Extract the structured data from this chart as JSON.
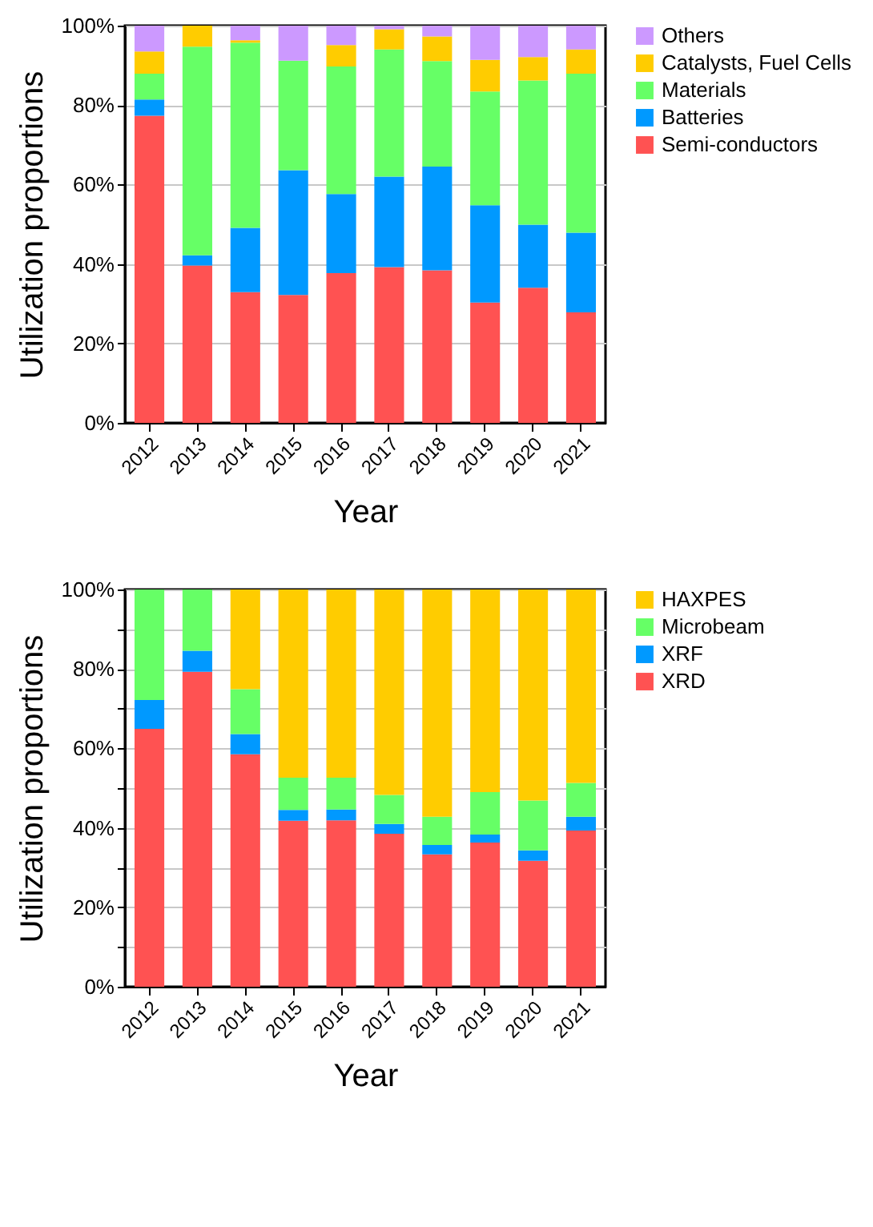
{
  "chart_data": [
    {
      "type": "bar",
      "stacked": true,
      "xlabel": "Year",
      "ylabel": "Utilization proportions",
      "categories": [
        "2012",
        "2013",
        "2014",
        "2015",
        "2016",
        "2017",
        "2018",
        "2019",
        "2020",
        "2021"
      ],
      "ylim": [
        0,
        100
      ],
      "yticks": [
        {
          "value": 0,
          "label": "0%"
        },
        {
          "value": 20,
          "label": "20%"
        },
        {
          "value": 40,
          "label": "40%"
        },
        {
          "value": 60,
          "label": "60%"
        },
        {
          "value": 80,
          "label": "80%"
        },
        {
          "value": 100,
          "label": "100%"
        }
      ],
      "grid": "y",
      "legend": "top right",
      "series": [
        {
          "name": "Semi-conductors",
          "color": "#ff5252",
          "values": [
            77.3,
            39.6,
            32.9,
            32.2,
            37.7,
            39.2,
            38.4,
            30.3,
            34.0,
            27.8
          ]
        },
        {
          "name": "Batteries",
          "color": "#0099ff",
          "values": [
            4.1,
            2.6,
            16.2,
            31.4,
            19.9,
            22.8,
            26.1,
            24.5,
            15.9,
            20.1
          ]
        },
        {
          "name": "Materials",
          "color": "#66ff66",
          "values": [
            6.5,
            52.5,
            46.6,
            27.6,
            32.1,
            32.0,
            26.6,
            28.6,
            36.3,
            40.0
          ]
        },
        {
          "name": "Catalysts, Fuel Cells",
          "color": "#ffcc00",
          "values": [
            5.6,
            5.3,
            0.6,
            0,
            5.4,
            5.1,
            6.2,
            8.0,
            5.9,
            6.1
          ]
        },
        {
          "name": "Others",
          "color": "#cc99ff",
          "values": [
            6.5,
            0,
            3.7,
            8.8,
            4.9,
            0.9,
            2.7,
            8.6,
            7.9,
            6.0
          ]
        }
      ]
    },
    {
      "type": "bar",
      "stacked": true,
      "xlabel": "Year",
      "ylabel": "Utilization proportions",
      "categories": [
        "2012",
        "2013",
        "2014",
        "2015",
        "2016",
        "2017",
        "2018",
        "2019",
        "2020",
        "2021"
      ],
      "ylim": [
        0,
        100
      ],
      "yticks": [
        {
          "value": 0,
          "label": "0%"
        },
        {
          "value": 10,
          "label": null
        },
        {
          "value": 20,
          "label": "20%"
        },
        {
          "value": 30,
          "label": null
        },
        {
          "value": 40,
          "label": "40%"
        },
        {
          "value": 50,
          "label": null
        },
        {
          "value": 60,
          "label": "60%"
        },
        {
          "value": 70,
          "label": null
        },
        {
          "value": 80,
          "label": "80%"
        },
        {
          "value": 90,
          "label": null
        },
        {
          "value": 100,
          "label": "100%"
        }
      ],
      "grid": "y",
      "legend": "top right",
      "series": [
        {
          "name": "XRD",
          "color": "#ff5252",
          "values": [
            64.9,
            79.3,
            58.5,
            41.8,
            41.9,
            38.5,
            33.3,
            36.3,
            31.7,
            39.3
          ]
        },
        {
          "name": "XRF",
          "color": "#0099ff",
          "values": [
            7.3,
            5.3,
            5.1,
            2.7,
            2.7,
            2.5,
            2.4,
            2.0,
            2.6,
            3.5
          ]
        },
        {
          "name": "Microbeam",
          "color": "#66ff66",
          "values": [
            27.8,
            15.4,
            11.3,
            8.1,
            8.0,
            7.3,
            7.1,
            10.7,
            12.6,
            8.5
          ]
        },
        {
          "name": "HAXPES",
          "color": "#ffcc00",
          "values": [
            0,
            0,
            25.1,
            47.4,
            47.4,
            51.7,
            57.2,
            51.0,
            53.1,
            48.7
          ]
        }
      ]
    }
  ]
}
